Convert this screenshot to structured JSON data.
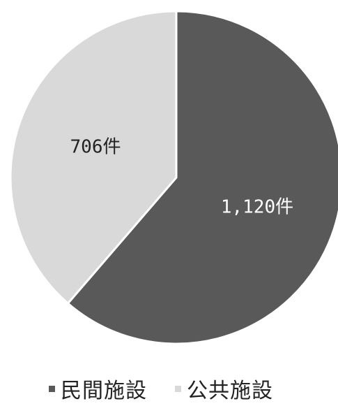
{
  "chart_data": {
    "type": "pie",
    "slices": [
      {
        "name": "民間施設",
        "value": 1120,
        "label": "1,120件",
        "color": "#595959",
        "label_color": "#ffffff"
      },
      {
        "name": "公共施設",
        "value": 706,
        "label": "706件",
        "color": "#d9d9d9",
        "label_color": "#222222"
      }
    ],
    "start_angle": "12 o'clock",
    "direction": "clockwise",
    "legend": {
      "position": "bottom",
      "entries": [
        "民間施設",
        "公共施設"
      ]
    }
  }
}
